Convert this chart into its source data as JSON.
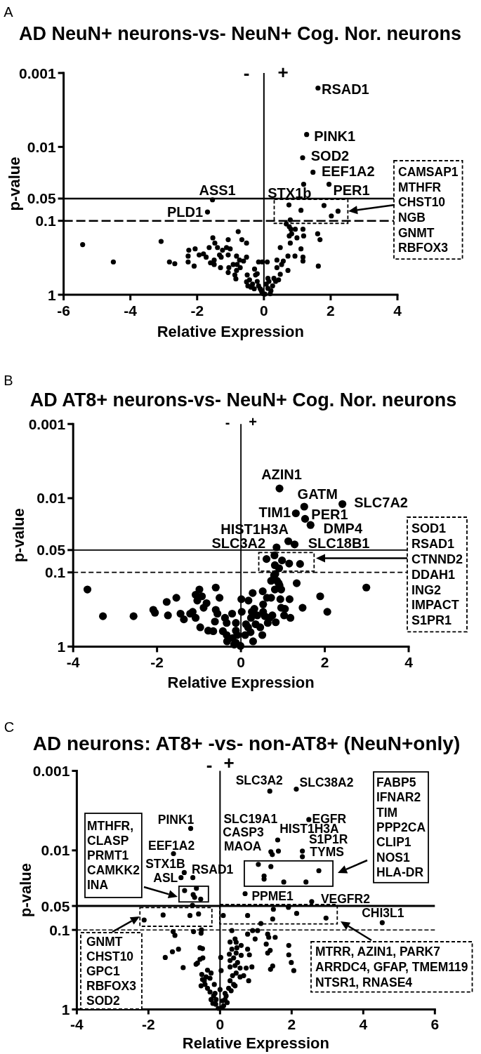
{
  "chart_data": [
    {
      "type": "scatter",
      "title": "AD NeuN+ neurons-vs- NeuN+ Cog. Nor. neurons",
      "xlabel": "Relative Expression",
      "ylabel": "p-value",
      "xlim": [
        -6,
        4
      ],
      "xticks": [
        -6,
        -4,
        -2,
        0,
        2,
        4
      ],
      "ylim": [
        1,
        0.001
      ],
      "yticks": [
        0.001,
        0.01,
        0.05,
        0.1,
        1
      ],
      "log": "y",
      "marker": "circle",
      "ref_lines": [
        {
          "axis": "y",
          "value": 0.05,
          "line_style": "solid"
        },
        {
          "axis": "y",
          "value": 0.1,
          "line_style": "dashed"
        },
        {
          "axis": "x",
          "value": 0,
          "line_style": "solid"
        }
      ],
      "series": [
        {
          "color": "#000000",
          "x": [
            -5.43,
            -4.51,
            -3.08,
            -2.83,
            -2.67,
            -2.25,
            -2.27,
            -2.27,
            -2.09,
            -2.06,
            -1.94,
            -1.81,
            -1.73,
            -1.64,
            -1.53,
            -1.47,
            -1.39,
            -1.33,
            -1.28,
            -1.6,
            -1.49,
            -1.3,
            -1.07,
            -1.12,
            -1.01,
            -1.07,
            -1.05,
            -1.07,
            -0.77,
            -0.66,
            -0.52,
            -0.82,
            -0.73,
            -0.8,
            -0.71,
            -0.82,
            -0.84,
            -0.52,
            -0.5,
            -0.43,
            -0.52,
            -0.48,
            -0.39,
            -0.28,
            -0.25,
            -0.2,
            -0.16,
            -0.29,
            -0.16,
            -0.05,
            -0.11,
            -0.06,
            -0.02,
            -0.34,
            -0.2,
            -1.49,
            -1.24,
            -0.92,
            -0.61,
            -0.87,
            0.1,
            0.07,
            0.12,
            0.15,
            0.21,
            0.26,
            0.3,
            0.35,
            0.44,
            0.49,
            0.39,
            0.53,
            0.58,
            0.39,
            0.72,
            0.72,
            0.93,
            1.17,
            1.17,
            0.49,
            0.79,
            1.11,
            0.76,
            0.83,
            0.99,
            1.19,
            0.67,
            0.76,
            0.81,
            0.94,
            1.17,
            1.61,
            1.68,
            1.63,
            0.12,
            0.03,
            0.19,
            -0.08,
            1.62,
            1.28,
            1.16,
            1.47,
            1.19,
            1.95,
            -1.54,
            -1.69
          ],
          "values": [
            0.21,
            0.36,
            0.19,
            0.36,
            0.38,
            0.25,
            0.3,
            0.36,
            0.41,
            0.24,
            0.29,
            0.28,
            0.31,
            0.23,
            0.17,
            0.2,
            0.23,
            0.29,
            0.31,
            0.37,
            0.39,
            0.43,
            0.18,
            0.23,
            0.24,
            0.29,
            0.43,
            0.5,
            0.14,
            0.18,
            0.2,
            0.3,
            0.34,
            0.39,
            0.43,
            0.47,
            0.61,
            0.31,
            0.54,
            0.63,
            0.67,
            0.76,
            0.79,
            0.45,
            0.54,
            0.66,
            0.76,
            0.83,
            0.36,
            0.36,
            0.83,
            0.92,
            0.97,
            0.72,
            0.52,
            0.34,
            0.25,
            0.39,
            0.35,
            0.54,
            0.36,
            0.72,
            0.82,
            0.66,
            0.88,
            0.76,
            0.6,
            0.66,
            0.63,
            0.53,
            0.43,
            0.39,
            0.35,
            0.34,
            0.47,
            0.3,
            0.3,
            0.31,
            0.35,
            0.23,
            0.2,
            0.24,
            0.16,
            0.15,
            0.17,
            0.16,
            0.11,
            0.12,
            0.13,
            0.13,
            0.13,
            0.15,
            0.18,
            0.41,
            0.6,
            0.98,
            0.97,
            0.87,
            0.0016,
            0.0068,
            0.014,
            0.022,
            0.032,
            0.032,
            0.052,
            0.076
          ]
        },
        {
          "color": "#000000",
          "x": [
            0.75,
            1.11,
            1.8,
            2.22,
            2.02,
            0.79
          ],
          "values": [
            0.061,
            0.072,
            0.062,
            0.074,
            0.086,
            0.097
          ]
        }
      ],
      "annotations": [
        "A",
        "-",
        "+",
        "CAMSAP1\nMTHFR\nCHST10\nNGB\nGNMT\nRBFOX3",
        {
          "text": "RSAD1",
          "x": 1.62,
          "y": 0.0016
        },
        {
          "text": "PINK1",
          "x": 1.28,
          "y": 0.0068
        },
        {
          "text": "SOD2",
          "x": 1.16,
          "y": 0.014
        },
        {
          "text": "EEF1A2",
          "x": 1.47,
          "y": 0.022
        },
        {
          "text": "STX1b",
          "x": 1.19,
          "y": 0.032
        },
        {
          "text": "PER1",
          "x": 1.95,
          "y": 0.032
        },
        {
          "text": "ASS1",
          "x": -1.54,
          "y": 0.052
        },
        {
          "text": "PLD1",
          "x": -1.69,
          "y": 0.076
        }
      ]
    },
    {
      "type": "scatter",
      "title": "AD AT8+ neurons-vs- NeuN+ Cog. Nor. neurons",
      "xlabel": "Relative Expression",
      "ylabel": "p-value",
      "xlim": [
        -4,
        4
      ],
      "xticks": [
        -4,
        -2,
        0,
        2,
        4
      ],
      "ylim": [
        1,
        0.001
      ],
      "yticks": [
        0.001,
        0.01,
        0.05,
        0.1,
        1
      ],
      "log": "y",
      "marker": "circle",
      "ref_lines": [
        {
          "axis": "y",
          "value": 0.05,
          "line_style": "solid"
        },
        {
          "axis": "y",
          "value": 0.1,
          "line_style": "dashed"
        },
        {
          "axis": "x",
          "value": 0,
          "line_style": "solid"
        }
      ],
      "series": [
        {
          "color": "#000000",
          "x": [
            -3.66,
            -3.29,
            -2.56,
            -2.09,
            -2.05,
            -1.77,
            -1.54,
            -1.74,
            -1.44,
            -1.36,
            -1.21,
            -1.15,
            -1.08,
            -0.99,
            -1.08,
            -0.93,
            -1.04,
            -0.89,
            -0.82,
            -0.97,
            -0.78,
            -0.6,
            -0.51,
            -0.6,
            -0.56,
            -0.62,
            -0.66,
            -0.43,
            -0.38,
            -0.34,
            -0.21,
            -0.34,
            -0.12,
            -0.2,
            -0.33,
            -0.12,
            -0.01,
            0.02,
            0.01,
            0.1,
            0.18,
            0.28,
            0.26,
            0.32,
            0.12,
            0.17,
            0.23,
            0.29,
            0.35,
            0.46,
            0.51,
            0.39,
            0.52,
            0.53,
            0.57,
            0.62,
            0.72,
            0.75,
            0.83,
            0.9,
            0.96,
            0.94,
            0.96,
            1.05,
            1.03,
            1.16,
            1.18,
            1.33,
            1.47,
            1.89,
            2.06,
            2.99,
            0.72,
            0.79,
            0.86,
            0.82,
            0.92,
            0.81,
            0.68,
            0.53,
            0.64,
            0.24,
            -0.12,
            -0.09,
            -0.16,
            0.92,
            1.51,
            2.42,
            1.31,
            1.53,
            1.66,
            1.13,
            1.28,
            0.85
          ],
          "values": [
            0.17,
            0.39,
            0.39,
            0.32,
            0.35,
            0.25,
            0.22,
            0.38,
            0.36,
            0.43,
            0.36,
            0.34,
            0.41,
            0.17,
            0.2,
            0.21,
            0.24,
            0.3,
            0.26,
            0.55,
            0.61,
            0.16,
            0.22,
            0.32,
            0.36,
            0.46,
            0.62,
            0.62,
            0.41,
            0.48,
            0.36,
            0.7,
            0.61,
            0.77,
            0.85,
            0.89,
            0.98,
            0.34,
            0.23,
            0.7,
            0.24,
            0.19,
            0.34,
            0.31,
            0.5,
            0.55,
            0.64,
            0.85,
            0.5,
            0.55,
            0.7,
            0.38,
            0.18,
            0.27,
            0.39,
            0.22,
            0.22,
            0.38,
            0.47,
            0.14,
            0.17,
            0.23,
            0.3,
            0.31,
            0.38,
            0.23,
            0.41,
            0.14,
            0.3,
            0.21,
            0.34,
            0.16,
            0.13,
            0.11,
            0.13,
            0.105,
            0.15,
            0.17,
            0.41,
            0.34,
            0.48,
            0.41,
            0.48,
            0.7,
            0.94,
            0.0074,
            0.013,
            0.012,
            0.016,
            0.019,
            0.023,
            0.038,
            0.042,
            0.046
          ]
        },
        {
          "color": "#000000",
          "x": [
            0.61,
            0.8,
            0.98,
            1.15,
            1.41,
            0.81,
            0.91
          ],
          "values": [
            0.066,
            0.059,
            0.069,
            0.076,
            0.077,
            0.08,
            0.088
          ]
        }
      ],
      "annotations": [
        "B",
        "-",
        "+",
        "SOD1\nRSAD1\nCTNND2\nDDAH1\nING2\nIMPACT\nS1PR1",
        {
          "text": "AZIN1",
          "x": 0.92,
          "y": 0.0074
        },
        {
          "text": "GATM",
          "x": 1.51,
          "y": 0.013
        },
        {
          "text": "SLC7A2",
          "x": 2.42,
          "y": 0.012
        },
        {
          "text": "TIM1",
          "x": 1.31,
          "y": 0.016
        },
        {
          "text": "PER1",
          "x": 1.53,
          "y": 0.019
        },
        {
          "text": "DMP4",
          "x": 1.66,
          "y": 0.023
        },
        {
          "text": "HIST1H3A",
          "x": 1.13,
          "y": 0.038
        },
        {
          "text": "SLC3A2",
          "x": 0.85,
          "y": 0.046
        },
        {
          "text": "SLC18B1",
          "x": 1.28,
          "y": 0.042
        }
      ]
    },
    {
      "type": "scatter",
      "title": "AD neurons: AT8+ -vs- non-AT8+ (NeuN+only)",
      "xlabel": "Relative Expression",
      "ylabel": "p-value",
      "xlim": [
        -4,
        6
      ],
      "xticks": [
        -4,
        -2,
        0,
        2,
        4,
        6
      ],
      "ylim": [
        1,
        0.001
      ],
      "yticks": [
        0.001,
        0.01,
        0.05,
        0.1,
        1
      ],
      "log": "y",
      "marker": "circle",
      "ref_lines": [
        {
          "axis": "y",
          "value": 0.05,
          "line_style": "solid"
        },
        {
          "axis": "y",
          "value": 0.1,
          "line_style": "dashed"
        },
        {
          "axis": "x",
          "value": 0,
          "line_style": "solid"
        }
      ],
      "series": [
        {
          "color": "#000000",
          "x": [
            -1.31,
            -1.26,
            -1.33,
            -1.16,
            -1.53,
            -1.03,
            -0.74,
            -0.53,
            -0.52,
            -0.56,
            -0.49,
            -0.48,
            -0.56,
            -0.63,
            -0.67,
            -0.35,
            -0.25,
            -0.28,
            -0.51,
            -0.49,
            -0.53,
            -0.44,
            -0.42,
            -0.35,
            -0.39,
            -0.16,
            -0.28,
            -0.18,
            -0.25,
            -0.11,
            0.02,
            0.03,
            0,
            0.17,
            0.07,
            0.14,
            0.33,
            0.42,
            0.45,
            0.28,
            0.33,
            0.47,
            0.59,
            0.77,
            0.91,
            1.05,
            1.14,
            0.98,
            0.77,
            0.82,
            0.89,
            0.73,
            0.59,
            0.45,
            0.26,
            0.28,
            0.38,
            0.49,
            0.28,
            0.42,
            0.56,
            0.66,
            0.8,
            0.45,
            0.35,
            0.28,
            0.38,
            0.24,
            0.31,
            0.42,
            0.56,
            1.33,
            1.36,
            1.54,
            1.29,
            1.4,
            1.33,
            1.47,
            1.41,
            1.92,
            1.92,
            1.99,
            2.06,
            0.14,
            -0.14,
            -0.12,
            0.05,
            0.1,
            -0.05,
            0.2,
            -0.2,
            -0.77,
            1.39,
            2.13,
            -0.82,
            2.48,
            1.61,
            1.46,
            1.63,
            1.42,
            2.3,
            2.3,
            -1.3,
            -1,
            -1.09,
            -0.76,
            0.7,
            2.56,
            4.53
          ],
          "values": [
            0.105,
            0.117,
            0.188,
            0.175,
            0.222,
            0.298,
            0.105,
            0.11,
            0.1,
            0.168,
            0.172,
            0.225,
            0.234,
            0.261,
            0.27,
            0.321,
            0.349,
            0.405,
            0.362,
            0.42,
            0.504,
            0.436,
            0.485,
            0.542,
            0.39,
            0.485,
            0.604,
            0.675,
            0.752,
            0.752,
            0.222,
            0.325,
            0.563,
            0.675,
            0.78,
            0.752,
            0.102,
            0.13,
            0.143,
            0.142,
            0.175,
            0.168,
            0.157,
            0.113,
            0.102,
            0.102,
            0.083,
            0.13,
            0.175,
            0.206,
            0.292,
            0.302,
            0.209,
            0.195,
            0.202,
            0.243,
            0.225,
            0.257,
            0.292,
            0.281,
            0.302,
            0.376,
            0.436,
            0.349,
            0.376,
            0.436,
            0.485,
            0.542,
            0.582,
            0.504,
            0.39,
            0.113,
            0.124,
            0.124,
            0.151,
            0.181,
            0.195,
            0.285,
            0.313,
            0.157,
            0.206,
            0.257,
            0.325,
            0.627,
            0.627,
            0.86,
            0.95,
            0.9,
            0.97,
            0.82,
            0.84,
            0.049,
            0.0018,
            0.0017,
            0.0053,
            0.0041,
            0.0074,
            0.0113,
            0.0102,
            0.0104,
            0.0102,
            0.012,
            0.011,
            0.019,
            0.022,
            0.022,
            0.035,
            0.044,
            0.081
          ]
        },
        {
          "color": "#000000",
          "x": [
            1.07,
            1.42,
            1.23,
            1.23,
            1.78,
            2.4,
            2.76
          ],
          "values": [
            0.015,
            0.016,
            0.021,
            0.023,
            0.025,
            0.025,
            0.018
          ]
        },
        {
          "color": "#000000",
          "x": [
            -0.99,
            -0.66,
            -0.75,
            -0.71,
            -0.54
          ],
          "values": [
            0.032,
            0.03,
            0.036,
            0.039,
            0.041
          ]
        },
        {
          "color": "#000000",
          "x": [
            -2.12,
            -1.59,
            -0.84,
            -0.6
          ],
          "values": [
            0.075,
            0.065,
            0.066,
            0.063
          ]
        },
        {
          "color": "#000000",
          "x": [
            0.09,
            0.77,
            1.49,
            1.91,
            2.14,
            2.96,
            1.47
          ],
          "values": [
            0.066,
            0.066,
            0.055,
            0.052,
            0.062,
            0.071,
            0.073
          ]
        }
      ],
      "annotations": [
        "C",
        "-",
        "+",
        "FABP5\nIFNAR2\nTIM\nPPP2CA\nCLIP1\nNOS1\nHLA-DR",
        "MTHFR,\nCLASP\nPRMT1\nCAMKK2\nINA",
        "GNMT\nCHST10\nGPC1\nRBFOX3\nSOD2",
        "MTRR, AZIN1, PARK7\nARRDC4, GFAP, TMEM119\nNTSR1, RNASE4",
        {
          "text": "SLC3A2",
          "x": 1.39,
          "y": 0.0018
        },
        {
          "text": "SLC38A2",
          "x": 2.13,
          "y": 0.0017
        },
        {
          "text": "PINK1",
          "x": -0.82,
          "y": 0.0053
        },
        {
          "text": "EGFR",
          "x": 2.48,
          "y": 0.0041
        },
        {
          "text": "HIST1H3A",
          "x": 1.61,
          "y": 0.0074
        },
        {
          "text": "SLC19A1",
          "x": 1.46,
          "y": 0.0113
        },
        {
          "text": "CASP3",
          "x": 1.63,
          "y": 0.0102
        },
        {
          "text": "MAOA",
          "x": 1.42,
          "y": 0.0104
        },
        {
          "text": "S1P1R",
          "x": 2.3,
          "y": 0.0102
        },
        {
          "text": "TYMS",
          "x": 2.3,
          "y": 0.012
        },
        {
          "text": "EEF1A2",
          "x": -1.3,
          "y": 0.011
        },
        {
          "text": "STX1B",
          "x": -1,
          "y": 0.019
        },
        {
          "text": "ASL",
          "x": -1.09,
          "y": 0.022
        },
        {
          "text": "RSAD1",
          "x": -0.76,
          "y": 0.022
        },
        {
          "text": "PPME1",
          "x": 0.7,
          "y": 0.035
        },
        {
          "text": "VEGFR2",
          "x": 2.56,
          "y": 0.044
        },
        {
          "text": "CHI3L1",
          "x": 4.53,
          "y": 0.081
        }
      ]
    }
  ]
}
